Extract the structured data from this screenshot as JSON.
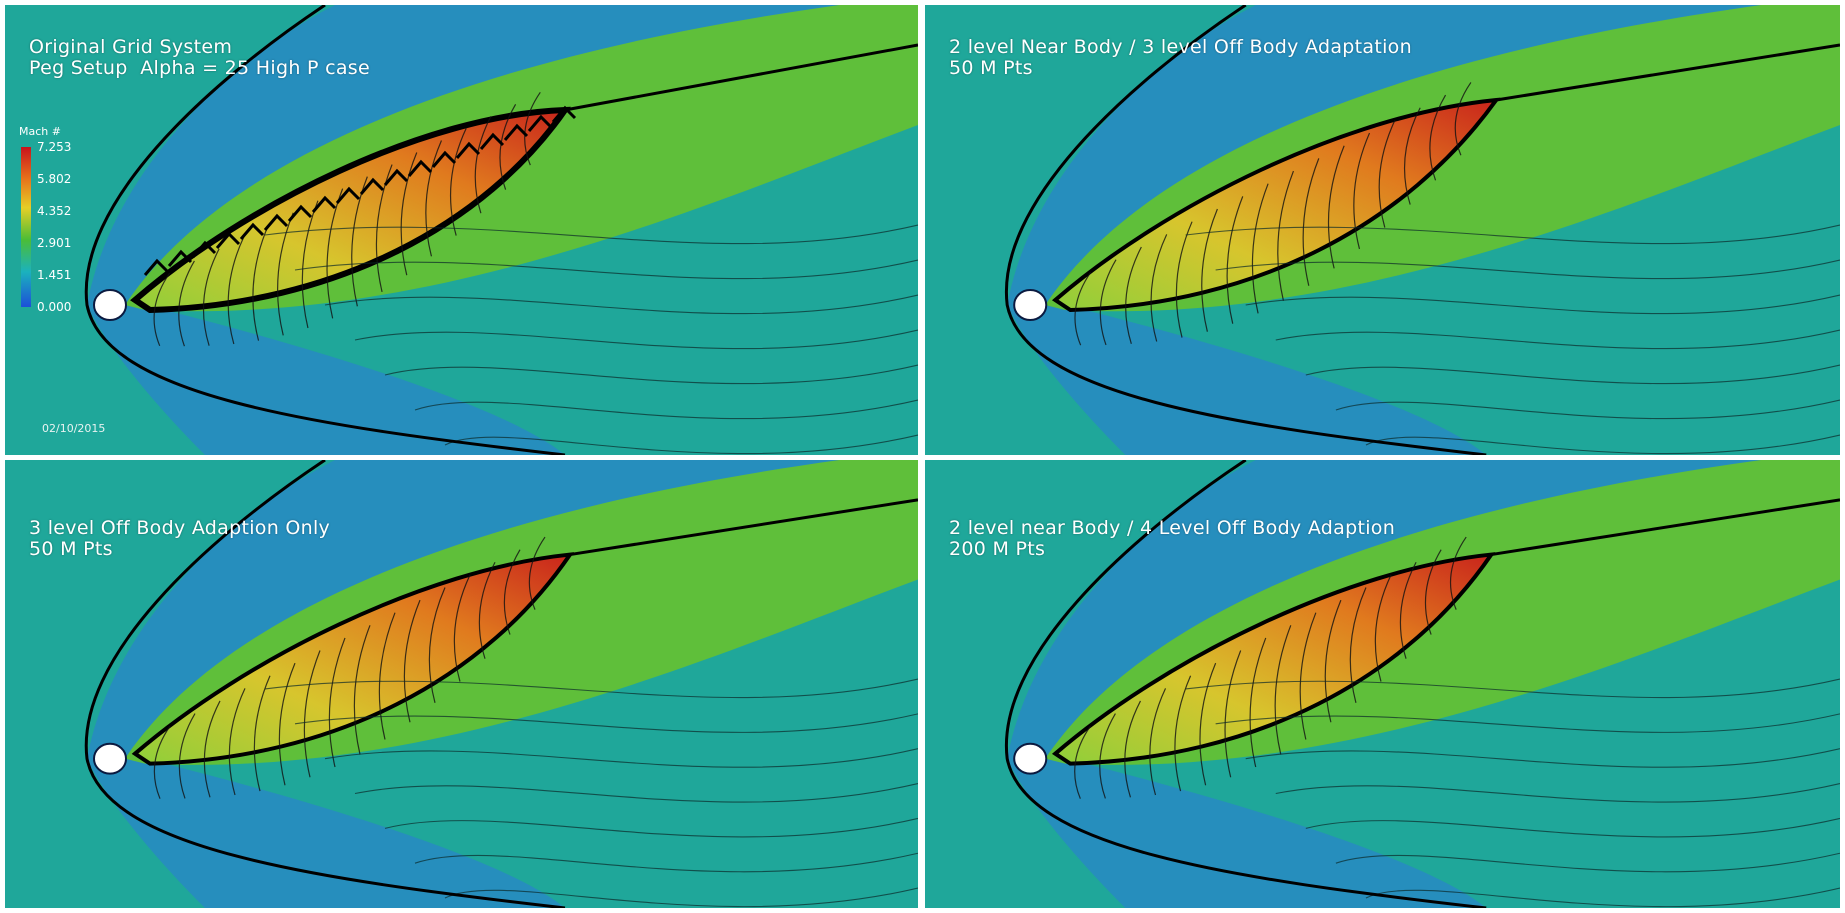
{
  "panels": [
    {
      "line1": "Original Grid System",
      "line2": "Peg Setup  Alpha = 25 High P case"
    },
    {
      "line1": "2 level Near Body / 3 level Off Body Adaptation",
      "line2": "50 M Pts"
    },
    {
      "line1": "3 level Off Body Adaption Only",
      "line2": "50 M Pts"
    },
    {
      "line1": "2 level near Body / 4 Level Off Body Adaption",
      "line2": "200 M Pts"
    }
  ],
  "legend": {
    "title": "Mach #",
    "ticks": [
      "7.253",
      "5.802",
      "4.352",
      "2.901",
      "1.451",
      "0.000"
    ]
  },
  "date_stamp": "02/10/2015",
  "colors": {
    "freestream": "#1fa79a",
    "shock_layer": "#5fbf3a",
    "core_low": "#d7c52d",
    "core_high": "#c9241c",
    "upstream": "#2a86c8"
  }
}
